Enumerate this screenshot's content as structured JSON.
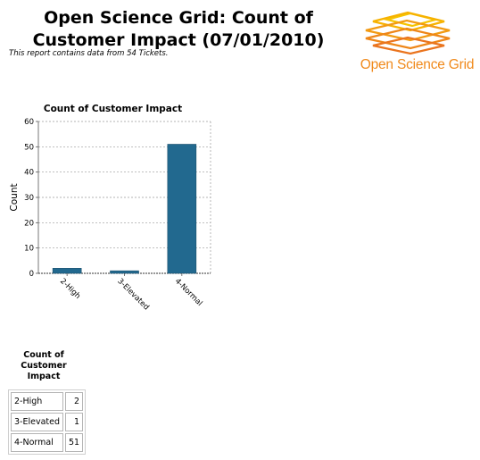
{
  "header": {
    "title_line1": "Open Science Grid: Count of",
    "title_line2": "Customer Impact (07/01/2010)",
    "subtitle": "This report contains data from 54 Tickets.",
    "logo_text": "Open Science Grid",
    "logo_color": "#f08a1c"
  },
  "chart_data": {
    "type": "bar",
    "title": "Count of Customer Impact",
    "xlabel": "",
    "ylabel": "Count",
    "categories": [
      "2-High",
      "3-Elevated",
      "4-Normal"
    ],
    "values": [
      2,
      1,
      51
    ],
    "ylim": [
      0,
      60
    ],
    "yticks": [
      0,
      10,
      20,
      30,
      40,
      50,
      60
    ],
    "grid": true,
    "bar_color": "#22698f"
  },
  "table": {
    "caption_lines": [
      "Count of",
      "Customer",
      "Impact"
    ],
    "rows": [
      {
        "label": "2-High",
        "value": "2"
      },
      {
        "label": "3-Elevated",
        "value": "1"
      },
      {
        "label": "4-Normal",
        "value": "51"
      }
    ]
  }
}
